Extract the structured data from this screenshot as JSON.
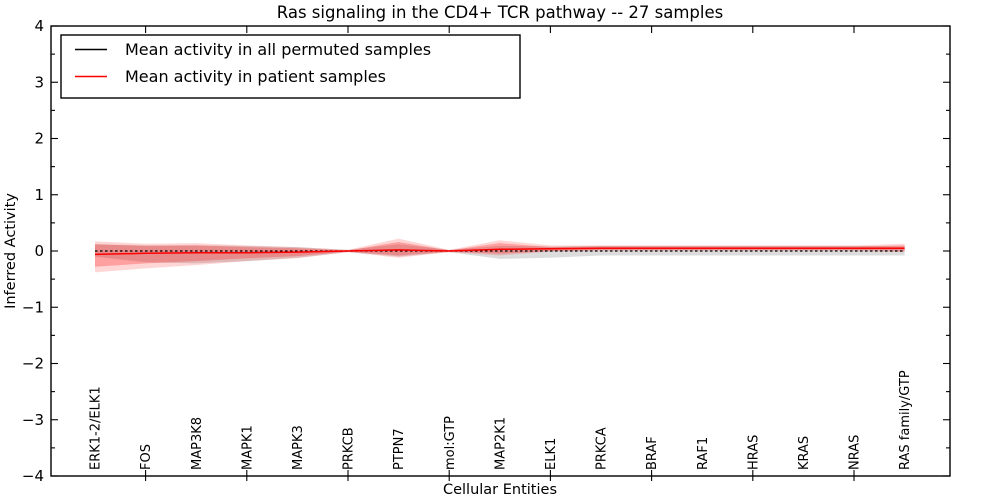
{
  "figure": {
    "background": "#ffffff",
    "frame_color": "#000000"
  },
  "chart_data": {
    "type": "line",
    "title": "Ras signaling in the CD4+ TCR pathway -- 27 samples",
    "xlabel": "Cellular Entities",
    "ylabel": "Inferred Activity",
    "ylim": [
      -4,
      4
    ],
    "ytick_step": 1,
    "ytick_minor_step": 0.5,
    "grid": "off",
    "legend_position": "upper left",
    "categories": [
      "ERK1-2/ELK1",
      "FOS",
      "MAP3K8",
      "MAPK1",
      "MAPK3",
      "PRKCB",
      "PTPN7",
      "mol:GTP",
      "MAP2K1",
      "ELK1",
      "PRKCA",
      "BRAF",
      "RAF1",
      "HRAS",
      "KRAS",
      "NRAS",
      "RAS family/GTP"
    ],
    "series": [
      {
        "name": "Mean activity in all permuted samples",
        "color": "#000000",
        "line_style": "dashed",
        "band_color": "#808080",
        "band_alpha": 0.28,
        "mean": [
          0,
          0,
          0,
          0,
          0,
          0,
          0,
          0,
          0,
          0,
          0,
          0,
          0,
          0,
          0,
          0,
          0
        ],
        "upper": [
          0.12,
          0.1,
          0.1,
          0.09,
          0.07,
          0.02,
          0.12,
          0.02,
          0.09,
          0.08,
          0.09,
          0.09,
          0.09,
          0.09,
          0.09,
          0.09,
          0.08
        ],
        "lower": [
          -0.1,
          -0.2,
          -0.22,
          -0.18,
          -0.12,
          -0.02,
          -0.1,
          -0.02,
          -0.14,
          -0.12,
          -0.08,
          -0.08,
          -0.08,
          -0.08,
          -0.08,
          -0.08,
          -0.08
        ]
      },
      {
        "name": "Mean activity in patient samples",
        "color": "#ff0000",
        "line_style": "solid",
        "band_color": "#ff0000",
        "band_alpha": 0.25,
        "outer_band_alpha": 0.16,
        "mean": [
          -0.06,
          -0.04,
          -0.03,
          -0.03,
          -0.02,
          0.0,
          0.02,
          0.0,
          0.03,
          0.04,
          0.05,
          0.05,
          0.05,
          0.05,
          0.05,
          0.05,
          0.05
        ],
        "upper": [
          0.12,
          0.09,
          0.1,
          0.07,
          0.05,
          0.01,
          0.16,
          0.01,
          0.14,
          0.07,
          0.08,
          0.08,
          0.08,
          0.08,
          0.08,
          0.08,
          0.1
        ],
        "lower": [
          -0.28,
          -0.22,
          -0.18,
          -0.13,
          -0.09,
          -0.01,
          -0.08,
          -0.01,
          -0.05,
          0.0,
          0.02,
          0.02,
          0.02,
          0.02,
          0.02,
          0.02,
          0.0
        ],
        "outer_upper": [
          0.17,
          0.13,
          0.14,
          0.1,
          0.07,
          0.02,
          0.22,
          0.02,
          0.19,
          0.1,
          0.1,
          0.1,
          0.1,
          0.1,
          0.1,
          0.1,
          0.13
        ],
        "outer_lower": [
          -0.38,
          -0.31,
          -0.25,
          -0.18,
          -0.13,
          -0.02,
          -0.12,
          -0.02,
          -0.08,
          -0.01,
          0.0,
          0.0,
          0.0,
          0.0,
          0.0,
          0.0,
          -0.02
        ]
      }
    ],
    "legend": {
      "entries": [
        {
          "label": "Mean activity in all permuted samples",
          "color": "#000000"
        },
        {
          "label": "Mean activity in patient samples",
          "color": "#ff0000"
        }
      ]
    }
  }
}
